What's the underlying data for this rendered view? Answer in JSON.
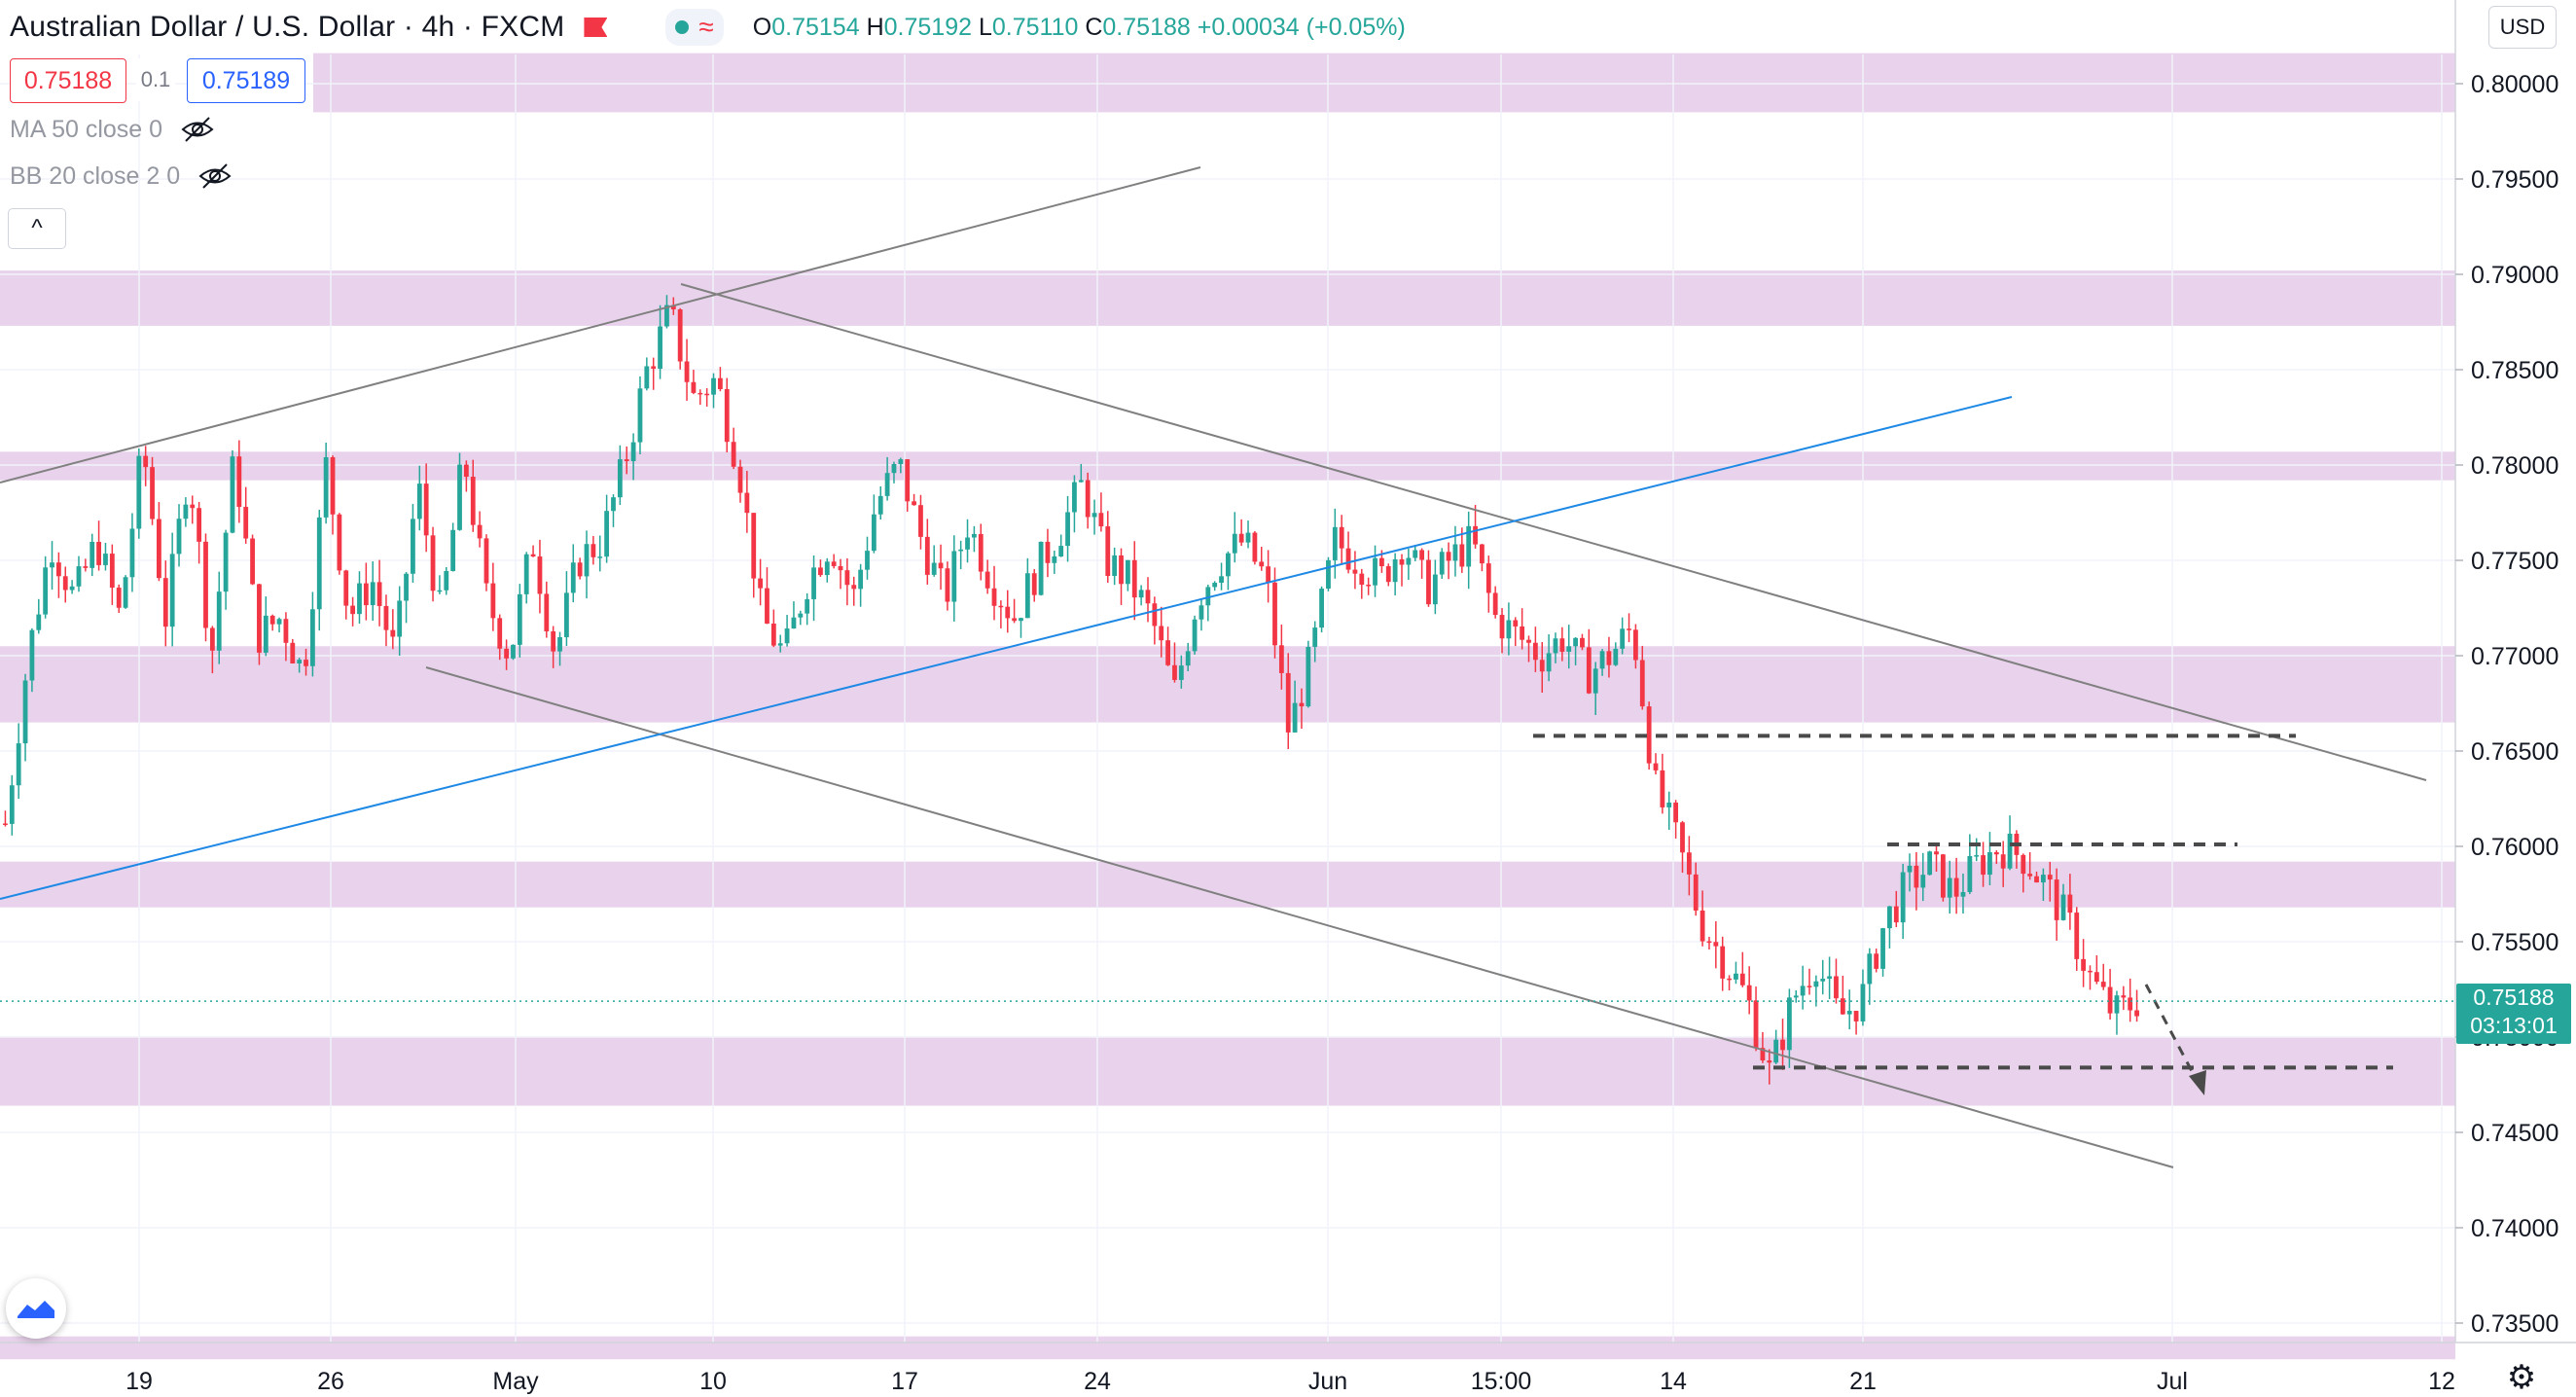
{
  "header": {
    "symbol": "Australian Dollar / U.S. Dollar · 4h · FXCM",
    "ohlc": {
      "o_label": "O",
      "o": "0.75154",
      "h_label": "H",
      "h": "0.75192",
      "l_label": "L",
      "l": "0.75110",
      "c_label": "C",
      "c": "0.75188",
      "change": "+0.00034 (+0.05%)"
    },
    "bid": "0.75188",
    "spread": "0.1",
    "ask": "0.75189"
  },
  "indicators": [
    {
      "label": "MA 50 close 0"
    },
    {
      "label": "BB 20 close 2 0"
    }
  ],
  "currency_button": "USD",
  "last_price": {
    "price": "0.75188",
    "countdown": "03:13:01"
  },
  "colors": {
    "up": "#26a69a",
    "down": "#f23645",
    "zone": "#e9d3ec",
    "trendline": "#808080",
    "support_line": "#1e88e5",
    "dashed": "#4a4a4a"
  },
  "chart_data": {
    "type": "candlestick",
    "title": "",
    "price_axis": {
      "ticks": [
        "0.80000",
        "0.79500",
        "0.79000",
        "0.78500",
        "0.78000",
        "0.77500",
        "0.77000",
        "0.76500",
        "0.76000",
        "0.75500",
        "0.75000",
        "0.74500",
        "0.74000",
        "0.73500"
      ],
      "range": [
        0.7335,
        0.8035
      ]
    },
    "time_axis": {
      "ticks": [
        "19",
        "26",
        "May",
        "10",
        "17",
        "24",
        "Jun",
        "15:00",
        "14",
        "21",
        "Jul",
        "12"
      ]
    },
    "zones": [
      [
        0.7985,
        0.8016
      ],
      [
        0.7873,
        0.7902
      ],
      [
        0.7792,
        0.7807
      ],
      [
        0.7665,
        0.7705
      ],
      [
        0.7568,
        0.7592
      ],
      [
        0.7464,
        0.75
      ],
      [
        0.7331,
        0.7343
      ]
    ],
    "horizontal_levels": [
      0.7658,
      0.7601,
      0.7484
    ],
    "close_path": [
      0.7612,
      0.77,
      0.776,
      0.773,
      0.776,
      0.772,
      0.781,
      0.772,
      0.78,
      0.77,
      0.7805,
      0.771,
      0.772,
      0.769,
      0.78,
      0.772,
      0.774,
      0.77,
      0.779,
      0.772,
      0.7805,
      0.773,
      0.77,
      0.776,
      0.77,
      0.775,
      0.776,
      0.78,
      0.785,
      0.788,
      0.7835,
      0.7845,
      0.78,
      0.772,
      0.77,
      0.774,
      0.776,
      0.773,
      0.778,
      0.78,
      0.776,
      0.773,
      0.777,
      0.774,
      0.772,
      0.7745,
      0.7765,
      0.779,
      0.775,
      0.774,
      0.772,
      0.768,
      0.773,
      0.775,
      0.776,
      0.774,
      0.766,
      0.77,
      0.776,
      0.775,
      0.774,
      0.776,
      0.7735,
      0.775,
      0.776,
      0.772,
      0.771,
      0.77,
      0.771,
      0.769,
      0.77,
      0.7715,
      0.763,
      0.76,
      0.756,
      0.754,
      0.752,
      0.748,
      0.752,
      0.754,
      0.751,
      0.752,
      0.756,
      0.758,
      0.759,
      0.7575,
      0.759,
      0.76,
      0.7595,
      0.758,
      0.756,
      0.753,
      0.7512,
      0.7519
    ]
  }
}
